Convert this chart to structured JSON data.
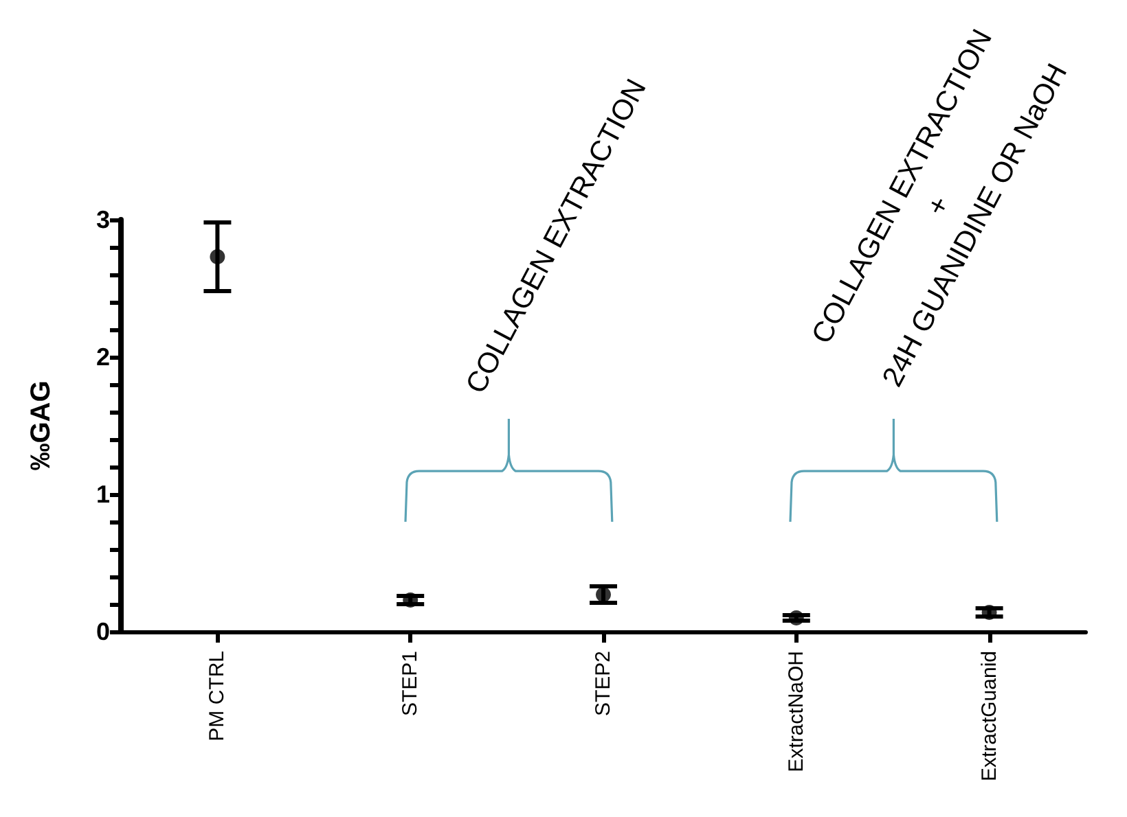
{
  "chart_data": {
    "type": "scatter",
    "ylabel": "‰GAG",
    "categories": [
      "PM CTRL",
      "STEP1",
      "STEP2",
      "ExtractNaOH",
      "ExtractGuanid"
    ],
    "series": [
      {
        "color": "#000000",
        "values": [
          2.73,
          0.23,
          0.27,
          0.1,
          0.14
        ],
        "errors": [
          0.25,
          0.03,
          0.06,
          0.02,
          0.03
        ]
      }
    ],
    "ylim": [
      0,
      3
    ],
    "yticks": [
      0,
      {
        "value": 0.2,
        "label": null
      },
      {
        "value": 0.4,
        "label": null
      },
      {
        "value": 0.6,
        "label": null
      },
      {
        "value": 0.8,
        "label": null
      },
      1,
      {
        "value": 1.2,
        "label": null
      },
      {
        "value": 1.4,
        "label": null
      },
      {
        "value": 1.6,
        "label": null
      },
      {
        "value": 1.8,
        "label": null
      },
      2,
      {
        "value": 2.2,
        "label": null
      },
      {
        "value": 2.4,
        "label": null
      },
      {
        "value": 2.6,
        "label": null
      },
      {
        "value": 2.8,
        "label": null
      },
      3
    ],
    "annotations": [
      "COLLAGEN EXTRACTION",
      "COLLAGEN EXTRACTION\n+\n24H GUANIDINE OR NaOH"
    ],
    "marker": "circle"
  }
}
